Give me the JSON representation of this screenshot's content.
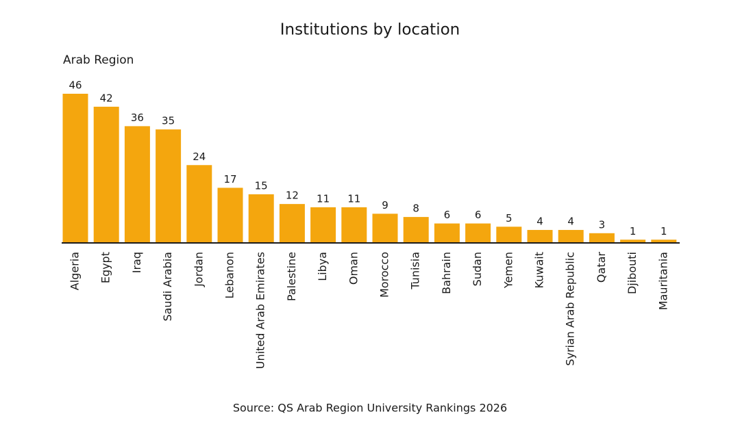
{
  "chart_data": {
    "type": "bar",
    "title": "Institutions by location",
    "subtitle": "Arab Region",
    "source": "Source: QS Arab Region University Rankings 2026",
    "categories": [
      "Algeria",
      "Egypt",
      "Iraq",
      "Saudi Arabia",
      "Jordan",
      "Lebanon",
      "United Arab Emirates",
      "Palestine",
      "Libya",
      "Oman",
      "Morocco",
      "Tunisia",
      "Bahrain",
      "Sudan",
      "Yemen",
      "Kuwait",
      "Syrian Arab Republic",
      "Qatar",
      "Djibouti",
      "Mauritania"
    ],
    "values": [
      46,
      42,
      36,
      35,
      24,
      17,
      15,
      12,
      11,
      11,
      9,
      8,
      6,
      6,
      5,
      4,
      4,
      3,
      1,
      1
    ],
    "color": "#f4a60e"
  }
}
